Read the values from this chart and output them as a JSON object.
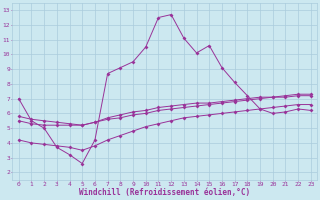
{
  "xlabel": "Windchill (Refroidissement éolien,°C)",
  "background_color": "#cce8f0",
  "grid_color": "#aaccdd",
  "line_color": "#993399",
  "x_ticks": [
    0,
    1,
    2,
    3,
    4,
    5,
    6,
    7,
    8,
    9,
    10,
    11,
    12,
    13,
    14,
    15,
    16,
    17,
    18,
    19,
    20,
    21,
    22,
    23
  ],
  "y_ticks": [
    2,
    3,
    4,
    5,
    6,
    7,
    8,
    9,
    10,
    11,
    12,
    13
  ],
  "ylim": [
    1.5,
    13.5
  ],
  "xlim": [
    -0.5,
    23.5
  ],
  "series1_x": [
    0,
    1,
    2,
    3,
    4,
    5,
    6,
    7,
    8,
    9,
    10,
    11,
    12,
    13,
    14,
    15,
    16,
    17,
    18,
    19,
    20,
    21,
    22,
    23
  ],
  "series1_y": [
    7.0,
    5.5,
    5.0,
    3.7,
    3.2,
    2.6,
    4.2,
    8.7,
    9.1,
    9.5,
    10.5,
    12.5,
    12.7,
    11.1,
    10.1,
    10.6,
    9.1,
    8.1,
    7.2,
    6.3,
    6.0,
    6.1,
    6.3,
    6.2
  ],
  "series2_x": [
    0,
    1,
    2,
    3,
    4,
    5,
    6,
    7,
    8,
    9,
    10,
    11,
    12,
    13,
    14,
    15,
    16,
    17,
    18,
    19,
    20,
    21,
    22,
    23
  ],
  "series2_y": [
    5.5,
    5.3,
    5.2,
    5.2,
    5.2,
    5.2,
    5.4,
    5.6,
    5.7,
    5.9,
    6.0,
    6.2,
    6.3,
    6.4,
    6.5,
    6.6,
    6.7,
    6.8,
    6.9,
    7.0,
    7.1,
    7.1,
    7.2,
    7.2
  ],
  "series3_x": [
    0,
    1,
    2,
    3,
    4,
    5,
    6,
    7,
    8,
    9,
    10,
    11,
    12,
    13,
    14,
    15,
    16,
    17,
    18,
    19,
    20,
    21,
    22,
    23
  ],
  "series3_y": [
    5.8,
    5.6,
    5.5,
    5.4,
    5.3,
    5.2,
    5.4,
    5.7,
    5.9,
    6.1,
    6.2,
    6.4,
    6.5,
    6.6,
    6.7,
    6.7,
    6.8,
    6.9,
    7.0,
    7.1,
    7.1,
    7.2,
    7.3,
    7.3
  ],
  "series4_x": [
    0,
    1,
    2,
    3,
    4,
    5,
    6,
    7,
    8,
    9,
    10,
    11,
    12,
    13,
    14,
    15,
    16,
    17,
    18,
    19,
    20,
    21,
    22,
    23
  ],
  "series4_y": [
    4.2,
    4.0,
    3.9,
    3.8,
    3.7,
    3.5,
    3.8,
    4.2,
    4.5,
    4.8,
    5.1,
    5.3,
    5.5,
    5.7,
    5.8,
    5.9,
    6.0,
    6.1,
    6.2,
    6.3,
    6.4,
    6.5,
    6.6,
    6.6
  ]
}
